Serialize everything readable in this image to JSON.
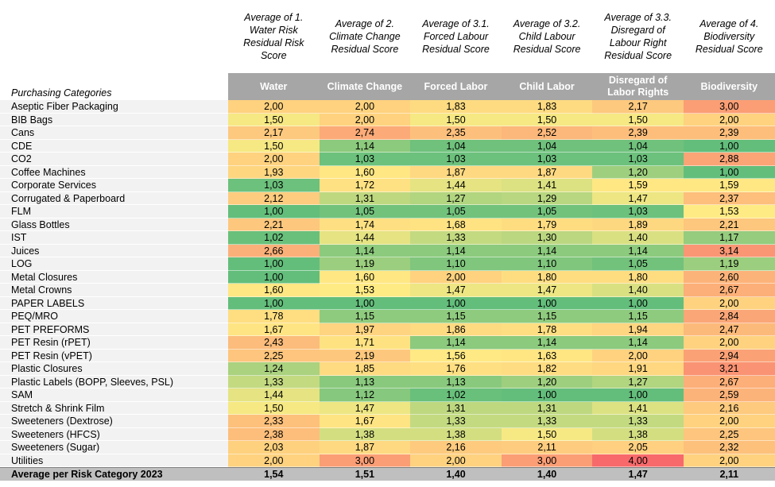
{
  "table": {
    "row_header_label": "Purchasing Categories",
    "column_titles": [
      "Average of 1. Water Risk Residual Risk Score",
      "Average of 2. Climate Change Residual Score",
      "Average of 3.1. Forced Labour Residual Score",
      "Average of 3.2. Child Labour Residual Score",
      "Average of 3.3. Disregard of Labour Right Residual Score",
      "Average of 4. Biodiversity Residual Score"
    ],
    "columns": [
      "Water",
      "Climate Change",
      "Forced Labor",
      "Child Labor",
      "Disregard of Labor Rights",
      "Biodiversity"
    ],
    "rows": [
      {
        "category": "Aseptic Fiber Packaging",
        "values": [
          "2,00",
          "2,00",
          "1,83",
          "1,83",
          "2,17",
          "3,00"
        ]
      },
      {
        "category": "BIB Bags",
        "values": [
          "1,50",
          "2,00",
          "1,50",
          "1,50",
          "1,50",
          "2,00"
        ]
      },
      {
        "category": "Cans",
        "values": [
          "2,17",
          "2,74",
          "2,35",
          "2,52",
          "2,39",
          "2,39"
        ]
      },
      {
        "category": "CDE",
        "values": [
          "1,50",
          "1,14",
          "1,04",
          "1,04",
          "1,04",
          "1,00"
        ]
      },
      {
        "category": "CO2",
        "values": [
          "2,00",
          "1,03",
          "1,03",
          "1,03",
          "1,03",
          "2,88"
        ]
      },
      {
        "category": "Coffee Machines",
        "values": [
          "1,93",
          "1,60",
          "1,87",
          "1,87",
          "1,20",
          "1,00"
        ]
      },
      {
        "category": "Corporate Services",
        "values": [
          "1,03",
          "1,72",
          "1,44",
          "1,41",
          "1,59",
          "1,59"
        ]
      },
      {
        "category": "Corrugated & Paperboard",
        "values": [
          "2,12",
          "1,31",
          "1,27",
          "1,29",
          "1,47",
          "2,37"
        ]
      },
      {
        "category": "FLM",
        "values": [
          "1,00",
          "1,05",
          "1,05",
          "1,05",
          "1,03",
          "1,53"
        ]
      },
      {
        "category": "Glass Bottles",
        "values": [
          "2,21",
          "1,74",
          "1,68",
          "1,79",
          "1,89",
          "2,21"
        ]
      },
      {
        "category": "IST",
        "values": [
          "1,02",
          "1,44",
          "1,33",
          "1,30",
          "1,40",
          "1,17"
        ]
      },
      {
        "category": "Juices",
        "values": [
          "2,66",
          "1,14",
          "1,14",
          "1,14",
          "1,14",
          "3,14"
        ]
      },
      {
        "category": "LOG",
        "values": [
          "1,00",
          "1,19",
          "1,10",
          "1,10",
          "1,05",
          "1,19"
        ]
      },
      {
        "category": "Metal Closures",
        "values": [
          "1,00",
          "1,60",
          "2,00",
          "1,80",
          "1,80",
          "2,60"
        ]
      },
      {
        "category": "Metal Crowns",
        "values": [
          "1,60",
          "1,53",
          "1,47",
          "1,47",
          "1,40",
          "2,67"
        ]
      },
      {
        "category": "PAPER LABELS",
        "values": [
          "1,00",
          "1,00",
          "1,00",
          "1,00",
          "1,00",
          "2,00"
        ]
      },
      {
        "category": "PEQ/MRO",
        "values": [
          "1,78",
          "1,15",
          "1,15",
          "1,15",
          "1,15",
          "2,84"
        ]
      },
      {
        "category": "PET PREFORMS",
        "values": [
          "1,67",
          "1,97",
          "1,86",
          "1,78",
          "1,94",
          "2,47"
        ]
      },
      {
        "category": "PET Resin (rPET)",
        "values": [
          "2,43",
          "1,71",
          "1,14",
          "1,14",
          "1,14",
          "2,00"
        ]
      },
      {
        "category": "PET Resin (vPET)",
        "values": [
          "2,25",
          "2,19",
          "1,56",
          "1,63",
          "2,00",
          "2,94"
        ]
      },
      {
        "category": "Plastic Closures",
        "values": [
          "1,24",
          "1,85",
          "1,76",
          "1,82",
          "1,91",
          "3,21"
        ]
      },
      {
        "category": "Plastic Labels (BOPP, Sleeves, PSL)",
        "values": [
          "1,33",
          "1,13",
          "1,13",
          "1,20",
          "1,27",
          "2,67"
        ]
      },
      {
        "category": "SAM",
        "values": [
          "1,44",
          "1,12",
          "1,02",
          "1,00",
          "1,00",
          "2,59"
        ]
      },
      {
        "category": "Stretch & Shrink Film",
        "values": [
          "1,50",
          "1,47",
          "1,31",
          "1,31",
          "1,41",
          "2,16"
        ]
      },
      {
        "category": "Sweeteners (Dextrose)",
        "values": [
          "2,33",
          "1,67",
          "1,33",
          "1,33",
          "1,33",
          "2,00"
        ]
      },
      {
        "category": "Sweeteners (HFCS)",
        "values": [
          "2,38",
          "1,38",
          "1,38",
          "1,50",
          "1,38",
          "2,25"
        ]
      },
      {
        "category": "Sweeteners (Sugar)",
        "values": [
          "2,03",
          "1,87",
          "2,16",
          "2,11",
          "2,05",
          "2,32"
        ]
      },
      {
        "category": "Utilities",
        "values": [
          "2,00",
          "3,00",
          "2,00",
          "3,00",
          "4,00",
          "2,00"
        ]
      }
    ],
    "total": {
      "label": "Average per Risk Category 2023",
      "values": [
        "1,54",
        "1,51",
        "1,40",
        "1,40",
        "1,47",
        "2,11"
      ]
    }
  }
}
